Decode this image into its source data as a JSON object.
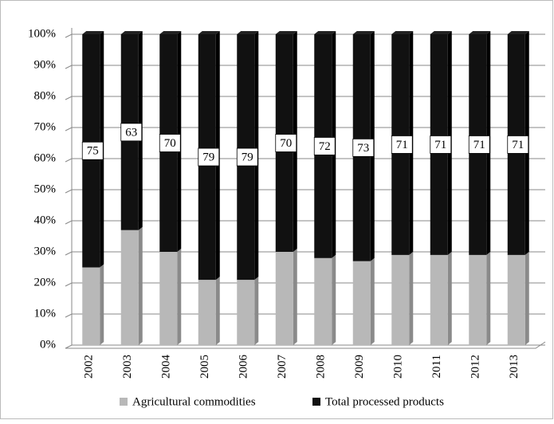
{
  "chart_data": {
    "type": "stacked_bar_100",
    "categories": [
      "2002",
      "2003",
      "2004",
      "2005",
      "2006",
      "2007",
      "2008",
      "2009",
      "2010",
      "2011",
      "2012",
      "2013"
    ],
    "series": [
      {
        "name": "Agricultural commodities",
        "color": "#b8b8b8",
        "values": [
          25,
          37,
          30,
          21,
          21,
          30,
          28,
          27,
          29,
          29,
          29,
          29
        ]
      },
      {
        "name": "Total processed products",
        "color": "#111111",
        "values": [
          75,
          63,
          70,
          79,
          79,
          70,
          72,
          73,
          71,
          71,
          71,
          71
        ]
      }
    ],
    "ylim": [
      0,
      100
    ],
    "yticks": [
      {
        "value": 0,
        "label": "0%"
      },
      {
        "value": 10,
        "label": "10%"
      },
      {
        "value": 20,
        "label": "20%"
      },
      {
        "value": 30,
        "label": "30%"
      },
      {
        "value": 40,
        "label": "40%"
      },
      {
        "value": 50,
        "label": "50%"
      },
      {
        "value": 60,
        "label": "60%"
      },
      {
        "value": 70,
        "label": "70%"
      },
      {
        "value": 80,
        "label": "80%"
      },
      {
        "value": 90,
        "label": "90%"
      },
      {
        "value": 100,
        "label": "100%"
      }
    ],
    "grid": true,
    "legend": "bottom",
    "data_labels_series": 1
  }
}
